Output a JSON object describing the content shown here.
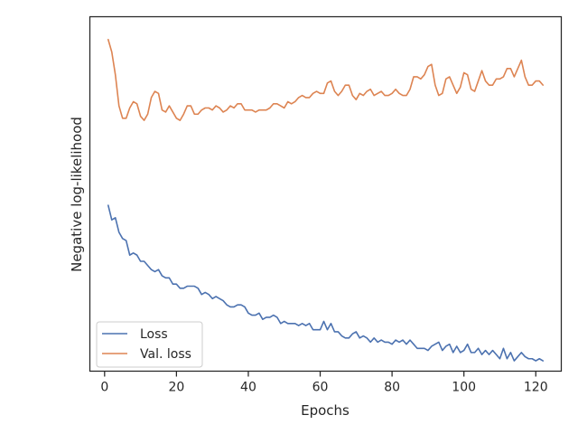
{
  "chart_data": {
    "type": "line",
    "xlabel": "Epochs",
    "ylabel": "Negative log-likelihood",
    "xlim": [
      -4.1,
      127.1
    ],
    "x_ticks": [
      0,
      20,
      40,
      60,
      80,
      100,
      120
    ],
    "ylim": [
      -0.15,
      1.56
    ],
    "y_tick_labels_shown": false,
    "grid": false,
    "legend_position": "lower left",
    "colors": {
      "loss": "#4c72b0",
      "val_loss": "#dd8452",
      "axes": "#262626"
    },
    "series": [
      {
        "name": "Loss",
        "x": [
          1,
          2,
          3,
          4,
          5,
          6,
          7,
          8,
          9,
          10,
          11,
          12,
          13,
          14,
          15,
          16,
          17,
          18,
          19,
          20,
          21,
          22,
          23,
          24,
          25,
          26,
          27,
          28,
          29,
          30,
          31,
          32,
          33,
          34,
          35,
          36,
          37,
          38,
          39,
          40,
          41,
          42,
          43,
          44,
          45,
          46,
          47,
          48,
          49,
          50,
          51,
          52,
          53,
          54,
          55,
          56,
          57,
          58,
          59,
          60,
          61,
          62,
          63,
          64,
          65,
          66,
          67,
          68,
          69,
          70,
          71,
          72,
          73,
          74,
          75,
          76,
          77,
          78,
          79,
          80,
          81,
          82,
          83,
          84,
          85,
          86,
          87,
          88,
          89,
          90,
          91,
          92,
          93,
          94,
          95,
          96,
          97,
          98,
          99,
          100,
          101,
          102,
          103,
          104,
          105,
          106,
          107,
          108,
          109,
          110,
          111,
          112,
          113,
          114,
          115,
          116,
          117,
          118,
          119,
          120,
          121,
          122
        ],
        "values": [
          0.65,
          0.58,
          0.59,
          0.52,
          0.49,
          0.48,
          0.41,
          0.42,
          0.41,
          0.38,
          0.38,
          0.36,
          0.34,
          0.33,
          0.34,
          0.31,
          0.3,
          0.3,
          0.27,
          0.27,
          0.25,
          0.25,
          0.26,
          0.26,
          0.26,
          0.25,
          0.22,
          0.23,
          0.22,
          0.2,
          0.21,
          0.2,
          0.19,
          0.17,
          0.16,
          0.16,
          0.17,
          0.17,
          0.16,
          0.13,
          0.12,
          0.12,
          0.13,
          0.1,
          0.11,
          0.11,
          0.12,
          0.11,
          0.08,
          0.09,
          0.08,
          0.08,
          0.08,
          0.07,
          0.08,
          0.07,
          0.08,
          0.05,
          0.05,
          0.05,
          0.09,
          0.05,
          0.08,
          0.04,
          0.04,
          0.02,
          0.01,
          0.01,
          0.03,
          0.04,
          0.01,
          0.02,
          0.01,
          -0.01,
          0.01,
          -0.01,
          0.0,
          -0.01,
          -0.01,
          -0.02,
          0.0,
          -0.01,
          0.0,
          -0.02,
          0.0,
          -0.02,
          -0.04,
          -0.04,
          -0.04,
          -0.05,
          -0.03,
          -0.02,
          -0.01,
          -0.05,
          -0.03,
          -0.02,
          -0.06,
          -0.03,
          -0.06,
          -0.05,
          -0.02,
          -0.06,
          -0.06,
          -0.04,
          -0.07,
          -0.05,
          -0.07,
          -0.05,
          -0.07,
          -0.09,
          -0.04,
          -0.09,
          -0.06,
          -0.1,
          -0.08,
          -0.06,
          -0.08,
          -0.09,
          -0.09,
          -0.1,
          -0.09,
          -0.1
        ]
      },
      {
        "name": "Val. loss",
        "x": [
          1,
          2,
          3,
          4,
          5,
          6,
          7,
          8,
          9,
          10,
          11,
          12,
          13,
          14,
          15,
          16,
          17,
          18,
          19,
          20,
          21,
          22,
          23,
          24,
          25,
          26,
          27,
          28,
          29,
          30,
          31,
          32,
          33,
          34,
          35,
          36,
          37,
          38,
          39,
          40,
          41,
          42,
          43,
          44,
          45,
          46,
          47,
          48,
          49,
          50,
          51,
          52,
          53,
          54,
          55,
          56,
          57,
          58,
          59,
          60,
          61,
          62,
          63,
          64,
          65,
          66,
          67,
          68,
          69,
          70,
          71,
          72,
          73,
          74,
          75,
          76,
          77,
          78,
          79,
          80,
          81,
          82,
          83,
          84,
          85,
          86,
          87,
          88,
          89,
          90,
          91,
          92,
          93,
          94,
          95,
          96,
          97,
          98,
          99,
          100,
          101,
          102,
          103,
          104,
          105,
          106,
          107,
          108,
          109,
          110,
          111,
          112,
          113,
          114,
          115,
          116,
          117,
          118,
          119,
          120,
          121,
          122
        ],
        "values": [
          1.45,
          1.39,
          1.28,
          1.13,
          1.07,
          1.07,
          1.12,
          1.15,
          1.14,
          1.08,
          1.06,
          1.09,
          1.17,
          1.2,
          1.19,
          1.11,
          1.1,
          1.13,
          1.1,
          1.07,
          1.06,
          1.09,
          1.13,
          1.13,
          1.09,
          1.09,
          1.11,
          1.12,
          1.12,
          1.11,
          1.13,
          1.12,
          1.1,
          1.11,
          1.13,
          1.12,
          1.14,
          1.14,
          1.11,
          1.11,
          1.11,
          1.1,
          1.11,
          1.11,
          1.11,
          1.12,
          1.14,
          1.14,
          1.13,
          1.12,
          1.15,
          1.14,
          1.15,
          1.17,
          1.18,
          1.17,
          1.17,
          1.19,
          1.2,
          1.19,
          1.19,
          1.24,
          1.25,
          1.2,
          1.18,
          1.2,
          1.23,
          1.23,
          1.18,
          1.16,
          1.19,
          1.18,
          1.2,
          1.21,
          1.18,
          1.19,
          1.2,
          1.18,
          1.18,
          1.19,
          1.21,
          1.19,
          1.18,
          1.18,
          1.21,
          1.27,
          1.27,
          1.26,
          1.28,
          1.32,
          1.33,
          1.23,
          1.18,
          1.19,
          1.26,
          1.27,
          1.23,
          1.19,
          1.22,
          1.29,
          1.28,
          1.21,
          1.2,
          1.25,
          1.3,
          1.25,
          1.23,
          1.23,
          1.26,
          1.26,
          1.27,
          1.31,
          1.31,
          1.27,
          1.31,
          1.35,
          1.27,
          1.23,
          1.23,
          1.25,
          1.25,
          1.23
        ]
      }
    ]
  }
}
